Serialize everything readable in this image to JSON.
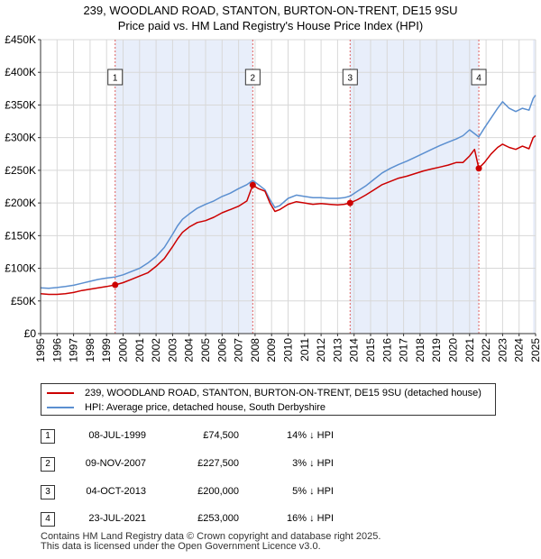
{
  "title_line1": "239, WOODLAND ROAD, STANTON, BURTON-ON-TRENT, DE15 9SU",
  "title_line2": "Price paid vs. HM Land Registry's House Price Index (HPI)",
  "colors": {
    "property": "#cc0000",
    "hpi": "#5b8fd0",
    "shade": "#e8eefa",
    "vline": "#e06060"
  },
  "chart_data": {
    "type": "line",
    "ylim": [
      0,
      450000
    ],
    "xlim": [
      1995.0,
      2025.0
    ],
    "y_ticks": [
      {
        "value": 0,
        "label": "£0"
      },
      {
        "value": 50000,
        "label": "£50K"
      },
      {
        "value": 100000,
        "label": "£100K"
      },
      {
        "value": 150000,
        "label": "£150K"
      },
      {
        "value": 200000,
        "label": "£200K"
      },
      {
        "value": 250000,
        "label": "£250K"
      },
      {
        "value": 300000,
        "label": "£300K"
      },
      {
        "value": 350000,
        "label": "£350K"
      },
      {
        "value": 400000,
        "label": "£400K"
      },
      {
        "value": 450000,
        "label": "£450K"
      }
    ],
    "x_ticks": [
      "1995",
      "1996",
      "1997",
      "1998",
      "1999",
      "2000",
      "2001",
      "2002",
      "2003",
      "2004",
      "2005",
      "2006",
      "2007",
      "2008",
      "2009",
      "2010",
      "2011",
      "2012",
      "2013",
      "2014",
      "2015",
      "2016",
      "2017",
      "2018",
      "2019",
      "2020",
      "2021",
      "2022",
      "2023",
      "2024",
      "2025"
    ],
    "grid": true,
    "series": [
      {
        "name": "239, WOODLAND ROAD, STANTON, BURTON-ON-TRENT, DE15 9SU (detached house)",
        "color": "#cc0000",
        "points": [
          [
            1995.0,
            61000
          ],
          [
            1995.5,
            60000
          ],
          [
            1996.0,
            60000
          ],
          [
            1996.5,
            61000
          ],
          [
            1997.0,
            63000
          ],
          [
            1997.5,
            66000
          ],
          [
            1998.0,
            68000
          ],
          [
            1998.5,
            70000
          ],
          [
            1999.0,
            72000
          ],
          [
            1999.52,
            74500
          ],
          [
            2000.0,
            78000
          ],
          [
            2000.5,
            83000
          ],
          [
            2001.0,
            88000
          ],
          [
            2001.5,
            93000
          ],
          [
            2002.0,
            103000
          ],
          [
            2002.5,
            115000
          ],
          [
            2003.0,
            133000
          ],
          [
            2003.3,
            145000
          ],
          [
            2003.6,
            155000
          ],
          [
            2004.0,
            163000
          ],
          [
            2004.5,
            170000
          ],
          [
            2005.0,
            173000
          ],
          [
            2005.5,
            178000
          ],
          [
            2006.0,
            185000
          ],
          [
            2006.5,
            190000
          ],
          [
            2007.0,
            195000
          ],
          [
            2007.5,
            203000
          ],
          [
            2007.86,
            227500
          ],
          [
            2008.2,
            222000
          ],
          [
            2008.6,
            218000
          ],
          [
            2008.9,
            200000
          ],
          [
            2009.2,
            187000
          ],
          [
            2009.5,
            190000
          ],
          [
            2010.0,
            198000
          ],
          [
            2010.5,
            202000
          ],
          [
            2011.0,
            200000
          ],
          [
            2011.5,
            198000
          ],
          [
            2012.0,
            199000
          ],
          [
            2012.5,
            198000
          ],
          [
            2013.0,
            197000
          ],
          [
            2013.4,
            198000
          ],
          [
            2013.76,
            200000
          ],
          [
            2014.2,
            205000
          ],
          [
            2014.7,
            212000
          ],
          [
            2015.2,
            220000
          ],
          [
            2015.7,
            228000
          ],
          [
            2016.2,
            233000
          ],
          [
            2016.7,
            238000
          ],
          [
            2017.2,
            241000
          ],
          [
            2017.7,
            245000
          ],
          [
            2018.2,
            249000
          ],
          [
            2018.7,
            252000
          ],
          [
            2019.2,
            255000
          ],
          [
            2019.7,
            258000
          ],
          [
            2020.2,
            262000
          ],
          [
            2020.6,
            262000
          ],
          [
            2021.0,
            272000
          ],
          [
            2021.3,
            282000
          ],
          [
            2021.56,
            253000
          ],
          [
            2021.9,
            262000
          ],
          [
            2022.3,
            275000
          ],
          [
            2022.7,
            285000
          ],
          [
            2023.0,
            290000
          ],
          [
            2023.4,
            285000
          ],
          [
            2023.8,
            282000
          ],
          [
            2024.2,
            287000
          ],
          [
            2024.6,
            283000
          ],
          [
            2024.85,
            300000
          ],
          [
            2025.0,
            303000
          ]
        ]
      },
      {
        "name": "HPI: Average price, detached house, South Derbyshire",
        "color": "#5b8fd0",
        "points": [
          [
            1995.0,
            70000
          ],
          [
            1995.5,
            69500
          ],
          [
            1996.0,
            70500
          ],
          [
            1996.5,
            72000
          ],
          [
            1997.0,
            74000
          ],
          [
            1997.5,
            77000
          ],
          [
            1998.0,
            80000
          ],
          [
            1998.5,
            83000
          ],
          [
            1999.0,
            85000
          ],
          [
            1999.52,
            86700
          ],
          [
            2000.0,
            90000
          ],
          [
            2000.5,
            95000
          ],
          [
            2001.0,
            100000
          ],
          [
            2001.5,
            108000
          ],
          [
            2002.0,
            118000
          ],
          [
            2002.5,
            132000
          ],
          [
            2003.0,
            152000
          ],
          [
            2003.3,
            165000
          ],
          [
            2003.6,
            175000
          ],
          [
            2004.0,
            183000
          ],
          [
            2004.5,
            192000
          ],
          [
            2005.0,
            198000
          ],
          [
            2005.5,
            203000
          ],
          [
            2006.0,
            210000
          ],
          [
            2006.5,
            215000
          ],
          [
            2007.0,
            222000
          ],
          [
            2007.5,
            228000
          ],
          [
            2007.86,
            234500
          ],
          [
            2008.2,
            228000
          ],
          [
            2008.6,
            220000
          ],
          [
            2008.9,
            205000
          ],
          [
            2009.2,
            193000
          ],
          [
            2009.5,
            196000
          ],
          [
            2010.0,
            207000
          ],
          [
            2010.5,
            212000
          ],
          [
            2011.0,
            210000
          ],
          [
            2011.5,
            208000
          ],
          [
            2012.0,
            208000
          ],
          [
            2012.5,
            207000
          ],
          [
            2013.0,
            207000
          ],
          [
            2013.4,
            208000
          ],
          [
            2013.76,
            210500
          ],
          [
            2014.2,
            218000
          ],
          [
            2014.7,
            226000
          ],
          [
            2015.2,
            236000
          ],
          [
            2015.7,
            246000
          ],
          [
            2016.2,
            253000
          ],
          [
            2016.7,
            259000
          ],
          [
            2017.2,
            264000
          ],
          [
            2017.7,
            270000
          ],
          [
            2018.2,
            276000
          ],
          [
            2018.7,
            282000
          ],
          [
            2019.2,
            288000
          ],
          [
            2019.7,
            293000
          ],
          [
            2020.2,
            298000
          ],
          [
            2020.6,
            303000
          ],
          [
            2021.0,
            312000
          ],
          [
            2021.56,
            301000
          ],
          [
            2021.9,
            315000
          ],
          [
            2022.3,
            330000
          ],
          [
            2022.7,
            345000
          ],
          [
            2023.0,
            355000
          ],
          [
            2023.4,
            345000
          ],
          [
            2023.8,
            340000
          ],
          [
            2024.2,
            345000
          ],
          [
            2024.6,
            342000
          ],
          [
            2024.85,
            360000
          ],
          [
            2025.0,
            365000
          ]
        ]
      }
    ],
    "sales": [
      {
        "id": "1",
        "x": 1999.52,
        "price": 74500
      },
      {
        "id": "2",
        "x": 2007.86,
        "price": 227500
      },
      {
        "id": "3",
        "x": 2013.76,
        "price": 200000
      },
      {
        "id": "4",
        "x": 2021.56,
        "price": 253000
      }
    ],
    "shaded_ranges": [
      [
        1999.52,
        2007.86
      ],
      [
        2013.76,
        2021.56
      ],
      [
        2024.85,
        2025.0
      ]
    ]
  },
  "legend": {
    "property_label": "239, WOODLAND ROAD, STANTON, BURTON-ON-TRENT, DE15 9SU (detached house)",
    "hpi_label": "HPI: Average price, detached house, South Derbyshire"
  },
  "transactions": [
    {
      "id": "1",
      "date": "08-JUL-1999",
      "price": "£74,500",
      "hpi": "14% ↓ HPI"
    },
    {
      "id": "2",
      "date": "09-NOV-2007",
      "price": "£227,500",
      "hpi": "3% ↓ HPI"
    },
    {
      "id": "3",
      "date": "04-OCT-2013",
      "price": "£200,000",
      "hpi": "5% ↓ HPI"
    },
    {
      "id": "4",
      "date": "23-JUL-2021",
      "price": "£253,000",
      "hpi": "16% ↓ HPI"
    }
  ],
  "footer_line1": "Contains HM Land Registry data © Crown copyright and database right 2025.",
  "footer_line2": "This data is licensed under the Open Government Licence v3.0."
}
